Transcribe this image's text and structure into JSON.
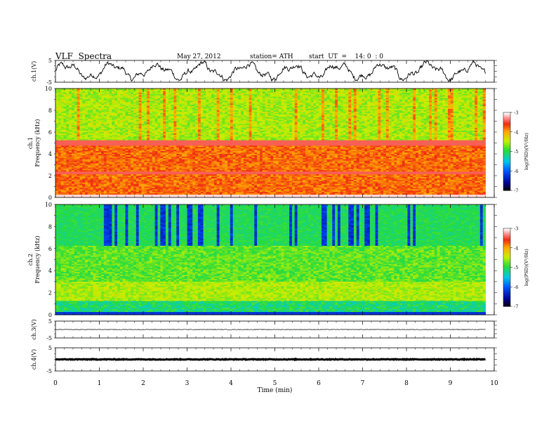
{
  "header": {
    "title": "VLF  Spectra",
    "date": "May 27, 2012",
    "station": "station= ATH",
    "start": "start  UT  =    14: 0  : 0"
  },
  "chart_data": [
    {
      "type": "line",
      "panel": "ch1-waveform",
      "ylabel": "ch.1(V)",
      "ylim": [
        -5,
        5
      ],
      "yticks": [
        "5",
        "-5"
      ],
      "xlim": [
        0,
        10
      ],
      "data_end_min": 9.8,
      "description_values": {
        "approx_range_V": [
          -5,
          5
        ]
      }
    },
    {
      "type": "heatmap",
      "panel": "ch1-spectrogram",
      "ylabel": "ch.1\nFrequency  (kHz)",
      "ylim": [
        0,
        10
      ],
      "yticks": [
        "0",
        "2",
        "4",
        "6",
        "8",
        "10"
      ],
      "xlim": [
        0,
        10
      ],
      "colorbar": {
        "label": "log(PSD)(V²/Hz)",
        "range": [
          -7,
          -3
        ],
        "ticks": [
          "-3",
          "-4",
          "-5",
          "-6",
          "-7"
        ]
      }
    },
    {
      "type": "heatmap",
      "panel": "ch2-spectrogram",
      "ylabel": "ch.2\nFrequency  (kHz)",
      "ylim": [
        0,
        10
      ],
      "yticks": [
        "0",
        "2",
        "4",
        "6",
        "8",
        "10"
      ],
      "xlim": [
        0,
        10
      ],
      "colorbar": {
        "label": "log(PSD)(V²/Hz)",
        "range": [
          -7,
          -3
        ],
        "ticks": [
          "-3",
          "-4",
          "-5",
          "-6",
          "-7"
        ]
      }
    },
    {
      "type": "line",
      "panel": "ch3-waveform",
      "ylabel": "ch.3(V)",
      "ylim": [
        -5,
        5
      ],
      "yticks": [
        "5",
        "-5"
      ],
      "xlim": [
        0,
        10
      ],
      "approx_level_V": 0
    },
    {
      "type": "line",
      "panel": "ch4-waveform",
      "ylabel": "ch.4(V)",
      "ylim": [
        -5,
        5
      ],
      "yticks": [
        "5",
        "-5"
      ],
      "xlim": [
        0,
        10
      ],
      "approx_level_V": 0
    }
  ],
  "xaxis": {
    "label": "Time  (min)",
    "ticks": [
      "0",
      "1",
      "2",
      "3",
      "4",
      "5",
      "6",
      "7",
      "8",
      "9",
      "10"
    ]
  },
  "colors": {
    "frame": "#000000",
    "background": "#ffffff"
  }
}
